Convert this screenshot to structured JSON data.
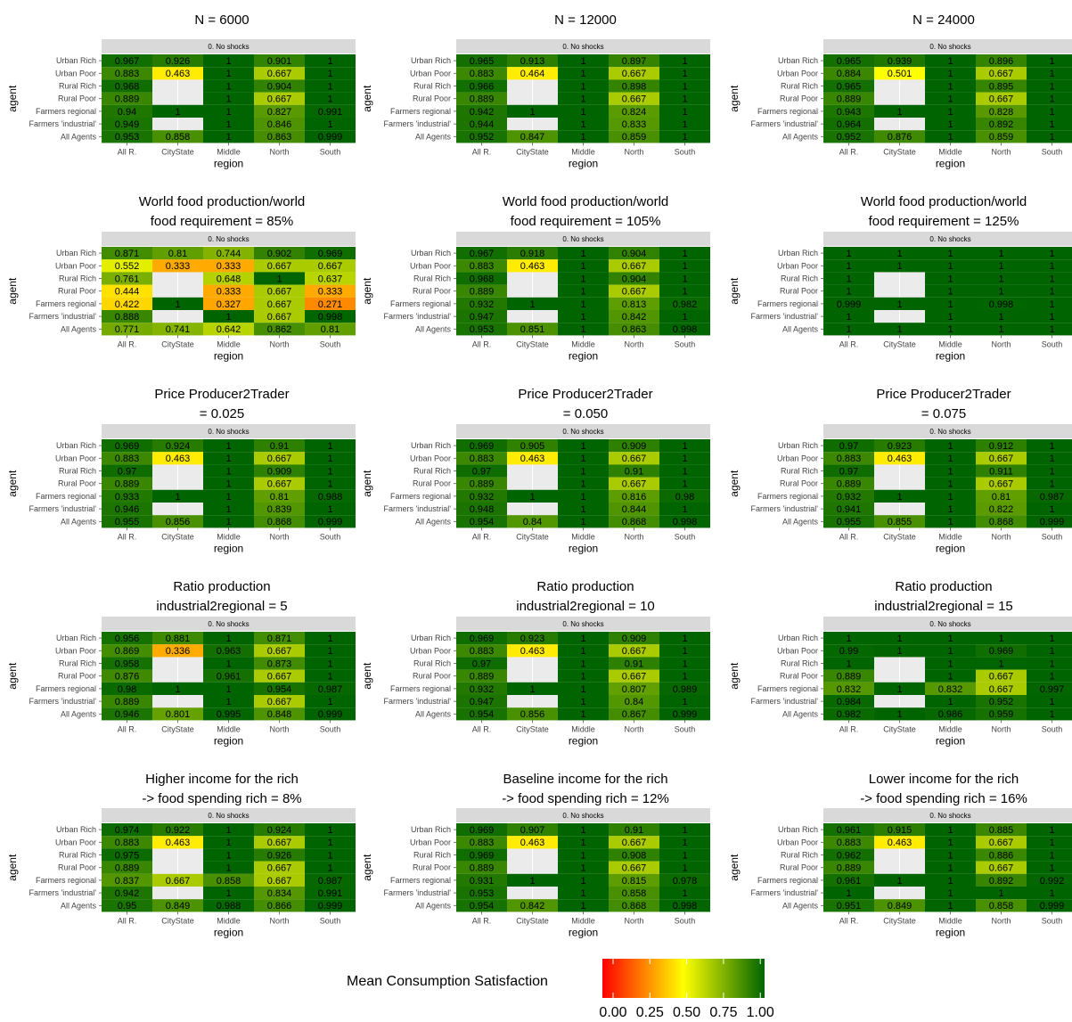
{
  "chart_data": {
    "type": "heatmap",
    "agents": [
      "Urban Rich",
      "Urban Poor",
      "Rural Rich",
      "Rural Poor",
      "Farmers regional",
      "Farmers 'industrial'",
      "All Agents"
    ],
    "regions": [
      "All R.",
      "CityState",
      "Middle",
      "North",
      "South"
    ],
    "xlabel": "region",
    "ylabel": "agent",
    "facet_label": "0. No shocks",
    "legend": {
      "title": "Mean Consumption Satisfaction",
      "ticks": [
        "0.00",
        "0.25",
        "0.50",
        "0.75",
        "1.00"
      ],
      "colors": [
        "#ff0000",
        "#ffff00",
        "#006400"
      ]
    },
    "panels": [
      {
        "title_lines": [
          "N = 6000"
        ],
        "values": [
          [
            0.967,
            0.926,
            1,
            0.901,
            1
          ],
          [
            0.883,
            0.463,
            1,
            0.667,
            1
          ],
          [
            0.968,
            null,
            1,
            0.904,
            1
          ],
          [
            0.889,
            null,
            1,
            0.667,
            1
          ],
          [
            0.94,
            1,
            1,
            0.827,
            0.991
          ],
          [
            0.949,
            null,
            1,
            0.846,
            1
          ],
          [
            0.953,
            0.858,
            1,
            0.863,
            0.999
          ]
        ]
      },
      {
        "title_lines": [
          "N = 12000"
        ],
        "values": [
          [
            0.965,
            0.913,
            1,
            0.897,
            1
          ],
          [
            0.883,
            0.464,
            1,
            0.667,
            1
          ],
          [
            0.966,
            null,
            1,
            0.898,
            1
          ],
          [
            0.889,
            null,
            1,
            0.667,
            1
          ],
          [
            0.942,
            1,
            1,
            0.824,
            1
          ],
          [
            0.944,
            null,
            1,
            0.833,
            1
          ],
          [
            0.952,
            0.847,
            1,
            0.859,
            1
          ]
        ]
      },
      {
        "title_lines": [
          "N = 24000"
        ],
        "values": [
          [
            0.965,
            0.939,
            1,
            0.896,
            1
          ],
          [
            0.884,
            0.501,
            1,
            0.667,
            1
          ],
          [
            0.965,
            null,
            1,
            0.895,
            1
          ],
          [
            0.889,
            null,
            1,
            0.667,
            1
          ],
          [
            0.943,
            1,
            1,
            0.828,
            1
          ],
          [
            0.964,
            null,
            1,
            0.892,
            1
          ],
          [
            0.952,
            0.876,
            1,
            0.859,
            1
          ]
        ]
      },
      {
        "title_lines": [
          "World food production/world",
          "food requirement = 85%"
        ],
        "values": [
          [
            0.871,
            0.81,
            0.744,
            0.902,
            0.969
          ],
          [
            0.552,
            0.333,
            0.333,
            0.667,
            0.667
          ],
          [
            0.761,
            null,
            0.648,
            1,
            0.637
          ],
          [
            0.444,
            null,
            0.333,
            0.667,
            0.333
          ],
          [
            0.422,
            1,
            0.327,
            0.667,
            0.271
          ],
          [
            0.888,
            null,
            1,
            0.667,
            0.998
          ],
          [
            0.771,
            0.741,
            0.642,
            0.862,
            0.81
          ]
        ]
      },
      {
        "title_lines": [
          "World food production/world",
          "food requirement = 105%"
        ],
        "values": [
          [
            0.967,
            0.918,
            1,
            0.904,
            1
          ],
          [
            0.883,
            0.463,
            1,
            0.667,
            1
          ],
          [
            0.968,
            null,
            1,
            0.904,
            1
          ],
          [
            0.889,
            null,
            1,
            0.667,
            1
          ],
          [
            0.932,
            1,
            1,
            0.813,
            0.982
          ],
          [
            0.947,
            null,
            1,
            0.842,
            1
          ],
          [
            0.953,
            0.851,
            1,
            0.863,
            0.998
          ]
        ]
      },
      {
        "title_lines": [
          "World food production/world",
          "food requirement = 125%"
        ],
        "values": [
          [
            1,
            1,
            1,
            1,
            1
          ],
          [
            1,
            1,
            1,
            1,
            1
          ],
          [
            1,
            null,
            1,
            1,
            1
          ],
          [
            1,
            null,
            1,
            1,
            1
          ],
          [
            0.999,
            1,
            1,
            0.998,
            1
          ],
          [
            1,
            null,
            1,
            1,
            1
          ],
          [
            1,
            1,
            1,
            1,
            1
          ]
        ]
      },
      {
        "title_lines": [
          "Price Producer2Trader",
          "= 0.025"
        ],
        "values": [
          [
            0.969,
            0.924,
            1,
            0.91,
            1
          ],
          [
            0.883,
            0.463,
            1,
            0.667,
            1
          ],
          [
            0.97,
            null,
            1,
            0.909,
            1
          ],
          [
            0.889,
            null,
            1,
            0.667,
            1
          ],
          [
            0.933,
            1,
            1,
            0.81,
            0.988
          ],
          [
            0.946,
            null,
            1,
            0.839,
            1
          ],
          [
            0.955,
            0.856,
            1,
            0.868,
            0.999
          ]
        ]
      },
      {
        "title_lines": [
          "Price Producer2Trader",
          "= 0.050"
        ],
        "values": [
          [
            0.969,
            0.905,
            1,
            0.909,
            1
          ],
          [
            0.883,
            0.463,
            1,
            0.667,
            1
          ],
          [
            0.97,
            null,
            1,
            0.91,
            1
          ],
          [
            0.889,
            null,
            1,
            0.667,
            1
          ],
          [
            0.932,
            1,
            1,
            0.816,
            0.98
          ],
          [
            0.948,
            null,
            1,
            0.844,
            1
          ],
          [
            0.954,
            0.84,
            1,
            0.868,
            0.998
          ]
        ]
      },
      {
        "title_lines": [
          "Price Producer2Trader",
          "= 0.075"
        ],
        "values": [
          [
            0.97,
            0.923,
            1,
            0.912,
            1
          ],
          [
            0.883,
            0.463,
            1,
            0.667,
            1
          ],
          [
            0.97,
            null,
            1,
            0.911,
            1
          ],
          [
            0.889,
            null,
            1,
            0.667,
            1
          ],
          [
            0.932,
            1,
            1,
            0.81,
            0.987
          ],
          [
            0.941,
            null,
            1,
            0.822,
            1
          ],
          [
            0.955,
            0.855,
            1,
            0.868,
            0.999
          ]
        ]
      },
      {
        "title_lines": [
          "Ratio production",
          "industrial2regional = 5"
        ],
        "values": [
          [
            0.956,
            0.881,
            1,
            0.871,
            1
          ],
          [
            0.869,
            0.336,
            0.963,
            0.667,
            1
          ],
          [
            0.958,
            null,
            1,
            0.873,
            1
          ],
          [
            0.876,
            null,
            0.961,
            0.667,
            1
          ],
          [
            0.98,
            1,
            1,
            0.954,
            0.987
          ],
          [
            0.889,
            null,
            1,
            0.667,
            1
          ],
          [
            0.946,
            0.801,
            0.995,
            0.848,
            0.999
          ]
        ]
      },
      {
        "title_lines": [
          "Ratio production",
          "industrial2regional = 10"
        ],
        "values": [
          [
            0.969,
            0.923,
            1,
            0.909,
            1
          ],
          [
            0.883,
            0.463,
            1,
            0.667,
            1
          ],
          [
            0.97,
            null,
            1,
            0.91,
            1
          ],
          [
            0.889,
            null,
            1,
            0.667,
            1
          ],
          [
            0.932,
            1,
            1,
            0.807,
            0.989
          ],
          [
            0.947,
            null,
            1,
            0.84,
            1
          ],
          [
            0.954,
            0.856,
            1,
            0.867,
            0.999
          ]
        ]
      },
      {
        "title_lines": [
          "Ratio production",
          "industrial2regional = 15"
        ],
        "values": [
          [
            1,
            1,
            1,
            1,
            1
          ],
          [
            0.99,
            1,
            1,
            0.969,
            1
          ],
          [
            1,
            null,
            1,
            1,
            1
          ],
          [
            0.889,
            null,
            1,
            0.667,
            1
          ],
          [
            0.832,
            1,
            0.832,
            0.667,
            0.997
          ],
          [
            0.984,
            null,
            1,
            0.952,
            1
          ],
          [
            0.982,
            1,
            0.986,
            0.959,
            1
          ]
        ]
      },
      {
        "title_lines": [
          "Higher income  for the rich",
          "-> food spending rich = 8%"
        ],
        "values": [
          [
            0.974,
            0.922,
            1,
            0.924,
            1
          ],
          [
            0.883,
            0.463,
            1,
            0.667,
            1
          ],
          [
            0.975,
            null,
            1,
            0.926,
            1
          ],
          [
            0.889,
            null,
            1,
            0.667,
            1
          ],
          [
            0.837,
            0.667,
            0.858,
            0.667,
            0.987
          ],
          [
            0.942,
            null,
            1,
            0.834,
            0.991
          ],
          [
            0.95,
            0.849,
            0.988,
            0.866,
            0.999
          ]
        ]
      },
      {
        "title_lines": [
          "Baseline income  for the rich",
          "-> food spending rich = 12%"
        ],
        "values": [
          [
            0.969,
            0.907,
            1,
            0.91,
            1
          ],
          [
            0.883,
            0.463,
            1,
            0.667,
            1
          ],
          [
            0.969,
            null,
            1,
            0.908,
            1
          ],
          [
            0.889,
            null,
            1,
            0.667,
            1
          ],
          [
            0.931,
            1,
            1,
            0.815,
            0.978
          ],
          [
            0.953,
            null,
            1,
            0.858,
            1
          ],
          [
            0.954,
            0.842,
            1,
            0.868,
            0.998
          ]
        ]
      },
      {
        "title_lines": [
          "Lower income  for the rich",
          "-> food spending rich = 16%"
        ],
        "values": [
          [
            0.961,
            0.915,
            1,
            0.885,
            1
          ],
          [
            0.883,
            0.463,
            1,
            0.667,
            1
          ],
          [
            0.962,
            null,
            1,
            0.886,
            1
          ],
          [
            0.889,
            null,
            1,
            0.667,
            1
          ],
          [
            0.961,
            1,
            1,
            0.892,
            0.992
          ],
          [
            1,
            null,
            1,
            1,
            1
          ],
          [
            0.951,
            0.849,
            1,
            0.858,
            0.999
          ]
        ]
      }
    ]
  }
}
